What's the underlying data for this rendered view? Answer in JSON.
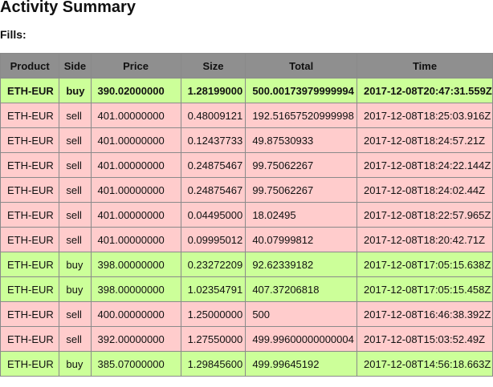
{
  "page": {
    "title": "Activity Summary",
    "fills_label": "Fills:"
  },
  "colors": {
    "buy_row": "#ccff99",
    "sell_row": "#ffcccc",
    "header": "#8f8f8f"
  },
  "fills": {
    "columns": [
      "Product",
      "Side",
      "Price",
      "Size",
      "Total",
      "Time"
    ],
    "rows": [
      {
        "product": "ETH-EUR",
        "side": "buy",
        "price": "390.02000000",
        "size": "1.28199000",
        "total": "500.00173979999994",
        "time": "2017-12-08T20:47:31.559Z",
        "highlight": true
      },
      {
        "product": "ETH-EUR",
        "side": "sell",
        "price": "401.00000000",
        "size": "0.48009121",
        "total": "192.51657520999998",
        "time": "2017-12-08T18:25:03.916Z",
        "highlight": false
      },
      {
        "product": "ETH-EUR",
        "side": "sell",
        "price": "401.00000000",
        "size": "0.12437733",
        "total": "49.87530933",
        "time": "2017-12-08T18:24:57.21Z",
        "highlight": false
      },
      {
        "product": "ETH-EUR",
        "side": "sell",
        "price": "401.00000000",
        "size": "0.24875467",
        "total": "99.75062267",
        "time": "2017-12-08T18:24:22.144Z",
        "highlight": false
      },
      {
        "product": "ETH-EUR",
        "side": "sell",
        "price": "401.00000000",
        "size": "0.24875467",
        "total": "99.75062267",
        "time": "2017-12-08T18:24:02.44Z",
        "highlight": false
      },
      {
        "product": "ETH-EUR",
        "side": "sell",
        "price": "401.00000000",
        "size": "0.04495000",
        "total": "18.02495",
        "time": "2017-12-08T18:22:57.965Z",
        "highlight": false
      },
      {
        "product": "ETH-EUR",
        "side": "sell",
        "price": "401.00000000",
        "size": "0.09995012",
        "total": "40.07999812",
        "time": "2017-12-08T18:20:42.71Z",
        "highlight": false
      },
      {
        "product": "ETH-EUR",
        "side": "buy",
        "price": "398.00000000",
        "size": "0.23272209",
        "total": "92.62339182",
        "time": "2017-12-08T17:05:15.638Z",
        "highlight": false
      },
      {
        "product": "ETH-EUR",
        "side": "buy",
        "price": "398.00000000",
        "size": "1.02354791",
        "total": "407.37206818",
        "time": "2017-12-08T17:05:15.458Z",
        "highlight": false
      },
      {
        "product": "ETH-EUR",
        "side": "sell",
        "price": "400.00000000",
        "size": "1.25000000",
        "total": "500",
        "time": "2017-12-08T16:46:38.392Z",
        "highlight": false
      },
      {
        "product": "ETH-EUR",
        "side": "sell",
        "price": "392.00000000",
        "size": "1.27550000",
        "total": "499.99600000000004",
        "time": "2017-12-08T15:03:52.49Z",
        "highlight": false
      },
      {
        "product": "ETH-EUR",
        "side": "buy",
        "price": "385.07000000",
        "size": "1.29845600",
        "total": "499.99645192",
        "time": "2017-12-08T14:56:18.663Z",
        "highlight": false
      }
    ]
  }
}
